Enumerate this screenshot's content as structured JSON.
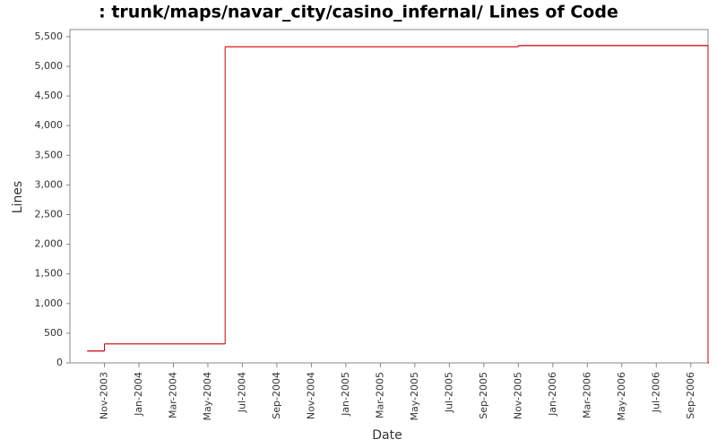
{
  "chart_data": {
    "type": "step",
    "title": ": trunk/maps/navar_city/casino_infernal/ Lines of Code",
    "x_label": "Date",
    "y_label": "Lines",
    "series": [
      {
        "name": "Lines",
        "color": "#cc0000",
        "x": [
          "2003-10",
          "2003-11",
          "2004-06",
          "2005-11",
          "2006-10"
        ],
        "values": [
          200,
          320,
          5330,
          5350,
          0
        ]
      }
    ],
    "xlim": [
      "2003-09",
      "2006-10"
    ],
    "xticks": [
      {
        "value": "2003-11",
        "label": "Nov-2003"
      },
      {
        "value": "2004-01",
        "label": "Jan-2004"
      },
      {
        "value": "2004-03",
        "label": "Mar-2004"
      },
      {
        "value": "2004-05",
        "label": "May-2004"
      },
      {
        "value": "2004-07",
        "label": "Jul-2004"
      },
      {
        "value": "2004-09",
        "label": "Sep-2004"
      },
      {
        "value": "2004-11",
        "label": "Nov-2004"
      },
      {
        "value": "2005-01",
        "label": "Jan-2005"
      },
      {
        "value": "2005-03",
        "label": "Mar-2005"
      },
      {
        "value": "2005-05",
        "label": "May-2005"
      },
      {
        "value": "2005-07",
        "label": "Jul-2005"
      },
      {
        "value": "2005-09",
        "label": "Sep-2005"
      },
      {
        "value": "2005-11",
        "label": "Nov-2005"
      },
      {
        "value": "2006-01",
        "label": "Jan-2006"
      },
      {
        "value": "2006-03",
        "label": "Mar-2006"
      },
      {
        "value": "2006-05",
        "label": "May-2006"
      },
      {
        "value": "2006-07",
        "label": "Jul-2006"
      },
      {
        "value": "2006-09",
        "label": "Sep-2006"
      }
    ],
    "ylim": [
      0,
      5620
    ],
    "yticks": [
      0,
      {
        "value": 500,
        "label": "500"
      },
      {
        "value": 1000,
        "label": "1,000"
      },
      {
        "value": 1500,
        "label": "1,500"
      },
      {
        "value": 2000,
        "label": "2,000"
      },
      {
        "value": 2500,
        "label": "2,500"
      },
      {
        "value": 3000,
        "label": "3,000"
      },
      {
        "value": 3500,
        "label": "3,500"
      },
      {
        "value": 4000,
        "label": "4,000"
      },
      {
        "value": 4500,
        "label": "4,500"
      },
      {
        "value": 5000,
        "label": "5,000"
      },
      {
        "value": 5500,
        "label": "5,500"
      }
    ],
    "grid": false
  }
}
